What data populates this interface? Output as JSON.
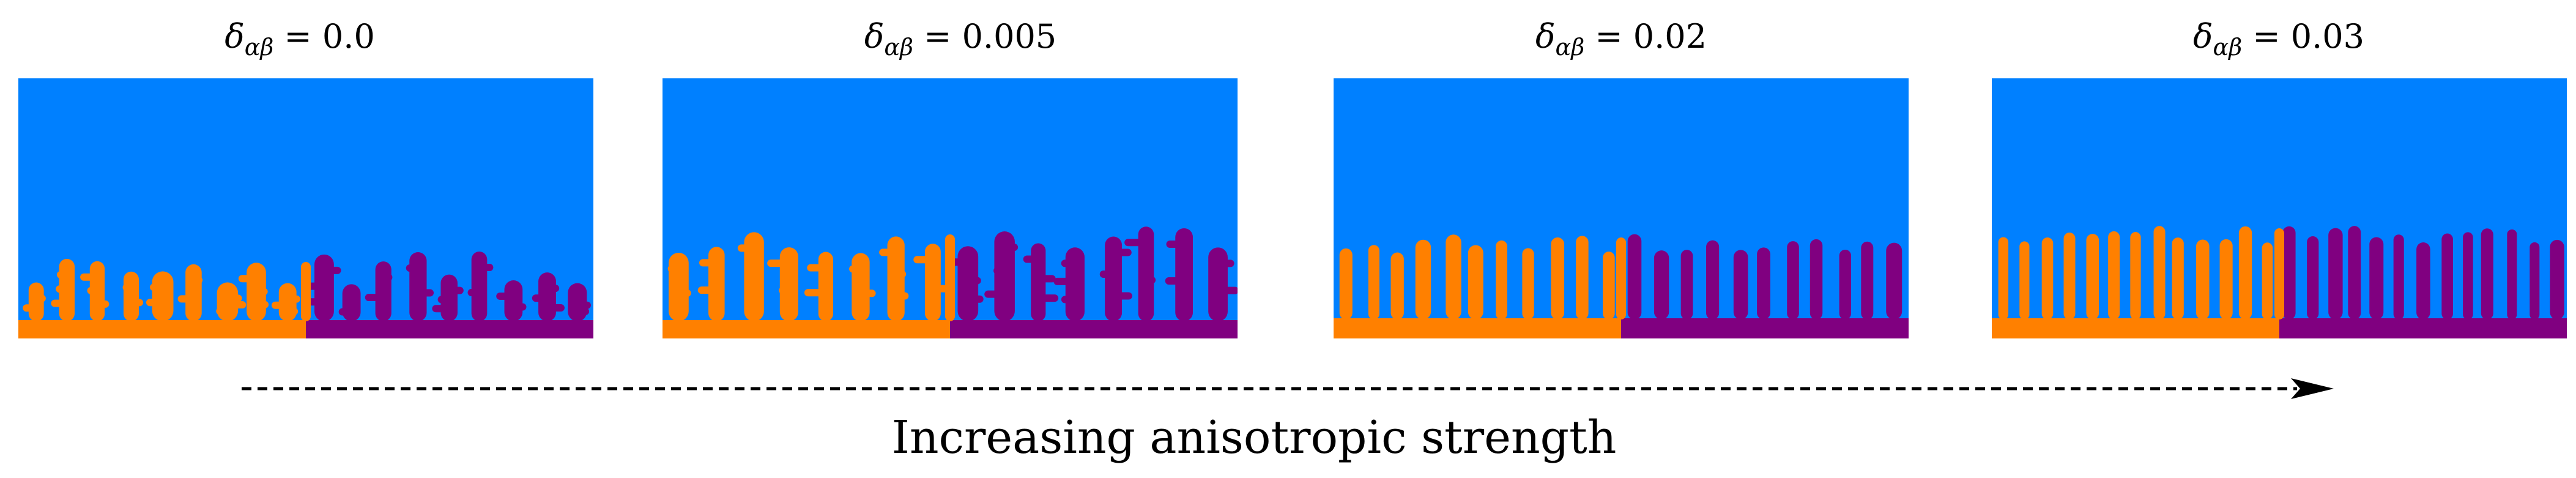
{
  "panels": [
    {
      "symbol": "δ",
      "subscript": "αβ",
      "value": "0.0"
    },
    {
      "symbol": "δ",
      "subscript": "αβ",
      "value": "0.005"
    },
    {
      "symbol": "δ",
      "subscript": "αβ",
      "value": "0.02"
    },
    {
      "symbol": "δ",
      "subscript": "αβ",
      "value": "0.03"
    }
  ],
  "caption": "Increasing anisotropic strength",
  "colors": {
    "liquid": "#0080ff",
    "phase_alpha": "#ff8000",
    "phase_beta": "#800080",
    "arrow": "#000000"
  }
}
